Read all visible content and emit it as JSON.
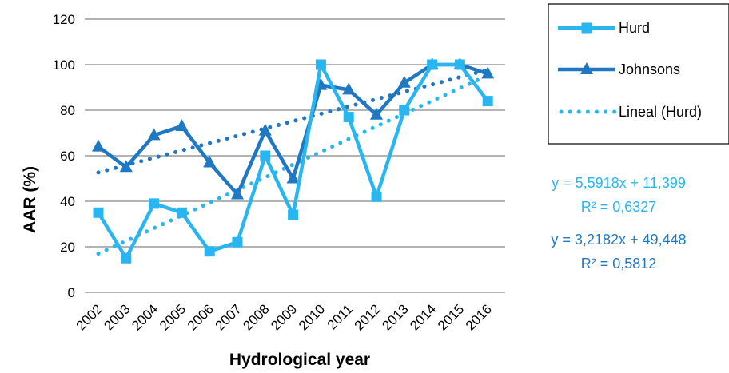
{
  "chart_data": {
    "type": "line",
    "xlabel": "Hydrological year",
    "ylabel": "AAR (%)",
    "ylim": [
      0,
      120
    ],
    "yticks": [
      0,
      20,
      40,
      60,
      80,
      100,
      120
    ],
    "grid": true,
    "categories": [
      "2002",
      "2003",
      "2004",
      "2005",
      "2006",
      "2007",
      "2008",
      "2009",
      "2010",
      "2011",
      "2012",
      "2013",
      "2014",
      "2015",
      "2016"
    ],
    "series": [
      {
        "name": "Hurd",
        "marker": "square",
        "color": "#29B6F0",
        "values": [
          35,
          15,
          39,
          35,
          18,
          22,
          60,
          34,
          100,
          77,
          42,
          80,
          100,
          100,
          84
        ]
      },
      {
        "name": "Johnsons",
        "marker": "triangle",
        "color": "#1F78C1",
        "values": [
          64,
          55,
          69,
          73,
          57,
          43,
          71,
          50,
          91,
          89,
          78,
          92,
          100,
          100,
          96
        ]
      }
    ],
    "trendlines": [
      {
        "name": "Lineal (Hurd)",
        "of": "Hurd",
        "color": "#29B6F0",
        "slope": 5.5918,
        "intercept": 11.399,
        "show_in_legend": true,
        "equation": "y = 5,5918x + 11,399",
        "r2": "R² = 0,6327"
      },
      {
        "name": "",
        "of": "Johnsons",
        "color": "#1F78C1",
        "slope": 3.2182,
        "intercept": 49.448,
        "show_in_legend": false,
        "equation": "y = 3,2182x + 49,448",
        "r2": "R² = 0,5812"
      }
    ],
    "legend_position": "top-right"
  }
}
